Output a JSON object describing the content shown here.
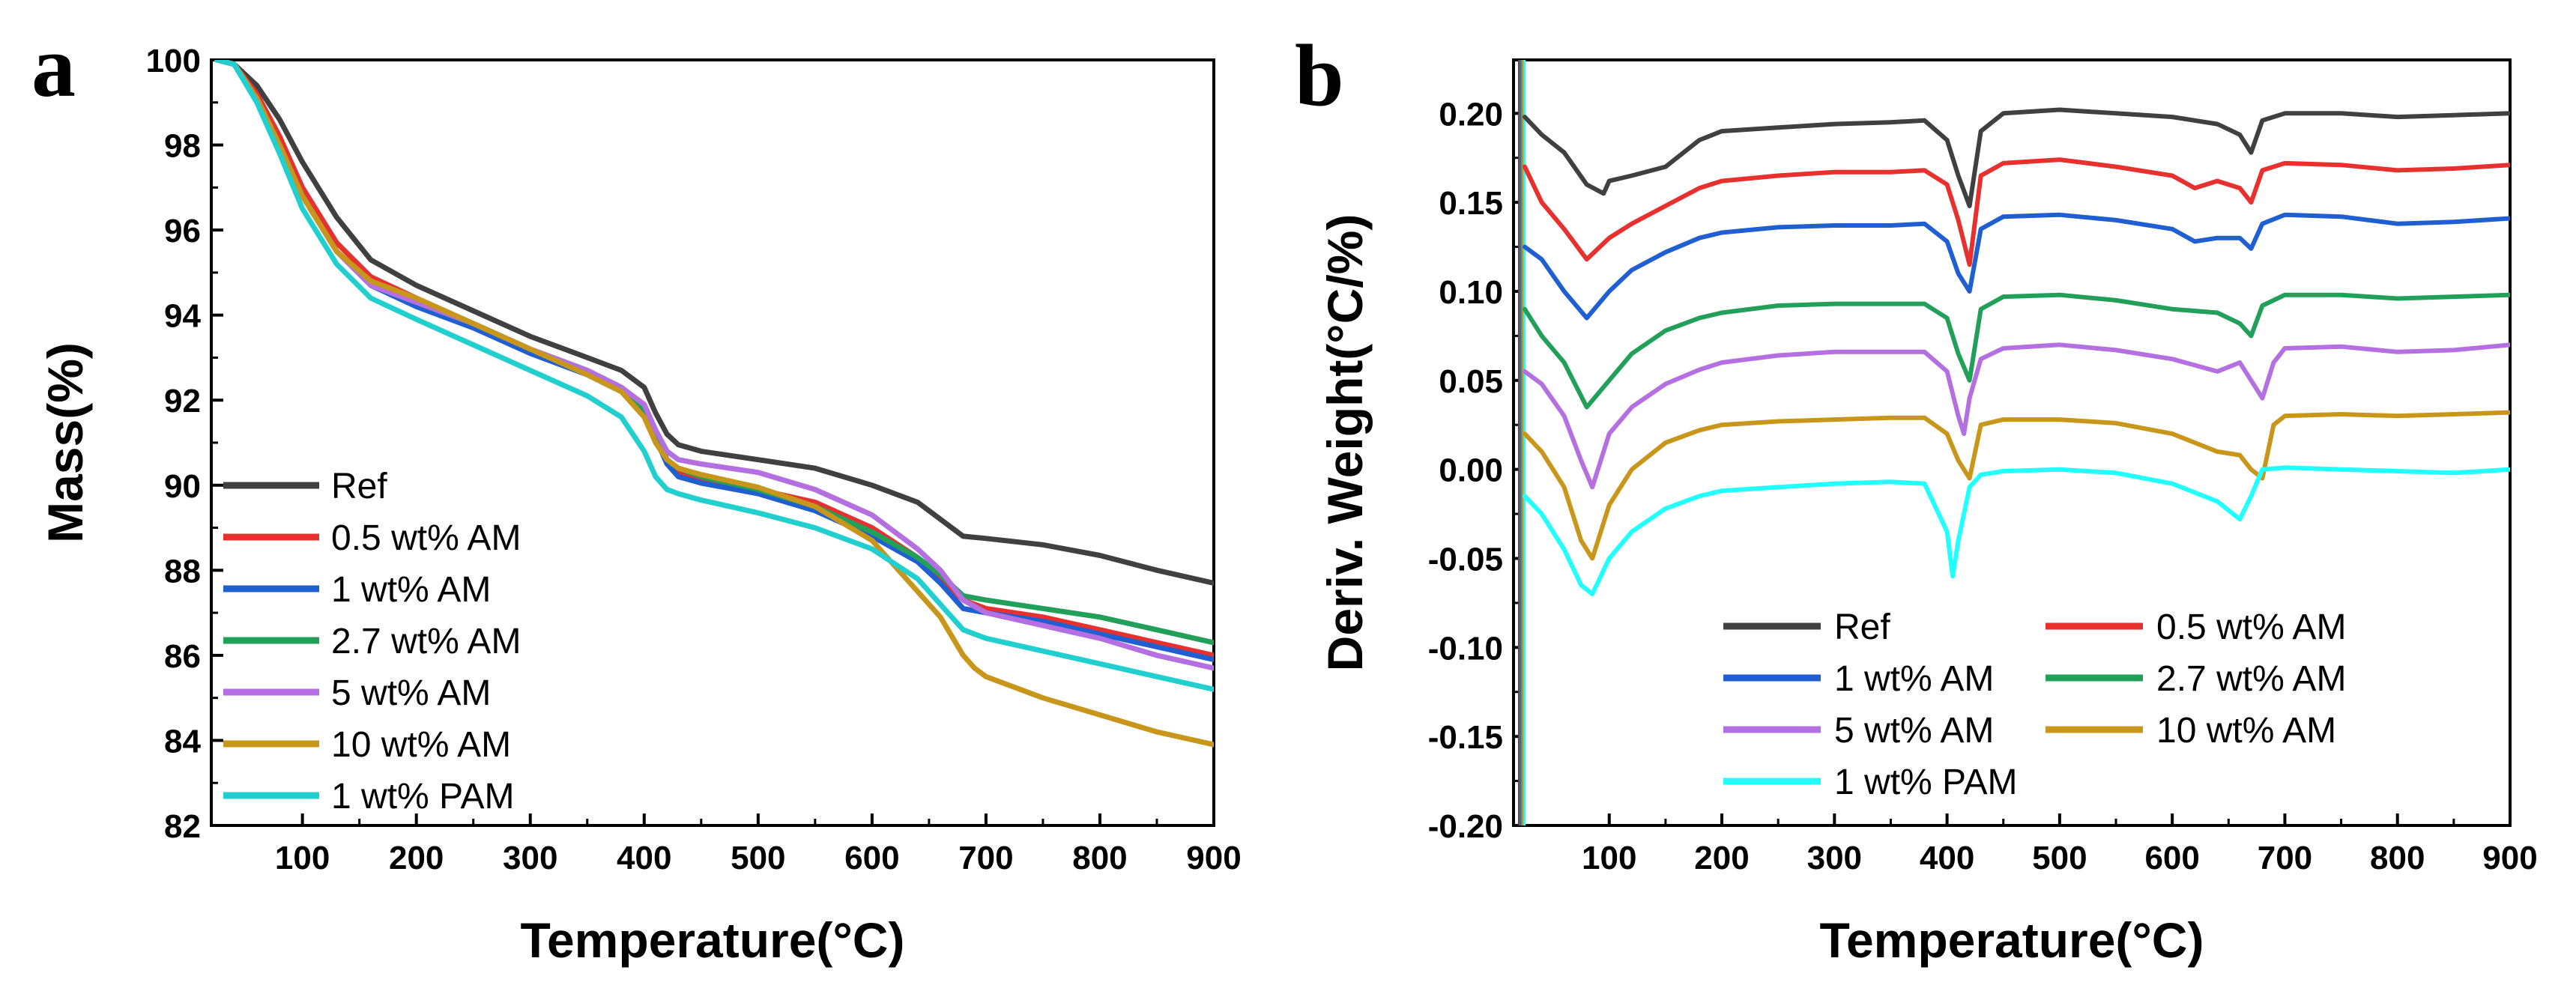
{
  "chart_data": [
    {
      "panel": "a",
      "type": "line",
      "xlabel": "Temperature(°C)",
      "ylabel": "Mass(%)",
      "xlim": [
        20,
        900
      ],
      "ylim": [
        82,
        100
      ],
      "xticks": [
        100,
        200,
        300,
        400,
        500,
        600,
        700,
        800,
        900
      ],
      "yticks": [
        82,
        84,
        86,
        88,
        90,
        92,
        94,
        96,
        98,
        100
      ],
      "legend_position": "bottom-left",
      "series": [
        {
          "name": "Ref",
          "color": "#404040",
          "x": [
            25,
            40,
            60,
            80,
            100,
            130,
            160,
            200,
            250,
            300,
            350,
            380,
            400,
            410,
            420,
            430,
            450,
            500,
            550,
            600,
            640,
            660,
            680,
            700,
            750,
            800,
            850,
            900
          ],
          "y": [
            100,
            99.9,
            99.4,
            98.6,
            97.6,
            96.3,
            95.3,
            94.7,
            94.1,
            93.5,
            93.0,
            92.7,
            92.3,
            91.7,
            91.2,
            90.95,
            90.8,
            90.6,
            90.4,
            90.0,
            89.6,
            89.2,
            88.8,
            88.75,
            88.6,
            88.35,
            88.0,
            87.7
          ]
        },
        {
          "name": "0.5 wt% AM",
          "color": "#e6312e",
          "x": [
            25,
            40,
            60,
            80,
            100,
            130,
            160,
            200,
            250,
            300,
            350,
            380,
            400,
            410,
            420,
            430,
            450,
            500,
            550,
            600,
            640,
            660,
            680,
            700,
            750,
            800,
            850,
            900
          ],
          "y": [
            100,
            99.9,
            99.2,
            98.2,
            97.0,
            95.7,
            94.9,
            94.4,
            93.8,
            93.2,
            92.7,
            92.3,
            91.8,
            91.2,
            90.6,
            90.3,
            90.15,
            89.9,
            89.6,
            89.0,
            88.3,
            87.8,
            87.3,
            87.1,
            86.9,
            86.6,
            86.3,
            86.0
          ]
        },
        {
          "name": "1 wt% AM",
          "color": "#1f5fd0",
          "x": [
            25,
            40,
            60,
            80,
            100,
            130,
            160,
            200,
            250,
            300,
            350,
            380,
            400,
            410,
            420,
            430,
            450,
            500,
            550,
            600,
            640,
            660,
            680,
            700,
            750,
            800,
            850,
            900
          ],
          "y": [
            100,
            99.9,
            99.1,
            98.0,
            96.8,
            95.5,
            94.7,
            94.2,
            93.7,
            93.1,
            92.6,
            92.2,
            91.7,
            91.1,
            90.5,
            90.2,
            90.05,
            89.8,
            89.4,
            88.8,
            88.2,
            87.7,
            87.1,
            87.0,
            86.8,
            86.5,
            86.2,
            85.9
          ]
        },
        {
          "name": "2.7 wt% AM",
          "color": "#22a05a",
          "x": [
            25,
            40,
            60,
            80,
            100,
            130,
            160,
            200,
            250,
            300,
            350,
            380,
            400,
            410,
            420,
            430,
            450,
            500,
            550,
            600,
            640,
            660,
            680,
            700,
            750,
            800,
            850,
            900
          ],
          "y": [
            100,
            99.9,
            99.1,
            98.0,
            96.8,
            95.5,
            94.7,
            94.3,
            93.8,
            93.2,
            92.7,
            92.3,
            91.8,
            91.2,
            90.6,
            90.4,
            90.2,
            89.9,
            89.5,
            88.9,
            88.3,
            87.9,
            87.4,
            87.3,
            87.1,
            86.9,
            86.6,
            86.3
          ]
        },
        {
          "name": "5 wt% AM",
          "color": "#b46fe0",
          "x": [
            25,
            40,
            60,
            80,
            100,
            130,
            160,
            200,
            250,
            300,
            350,
            380,
            400,
            410,
            420,
            430,
            450,
            500,
            550,
            600,
            640,
            660,
            680,
            700,
            750,
            800,
            850,
            900
          ],
          "y": [
            100,
            99.9,
            99.1,
            98.0,
            96.8,
            95.5,
            94.7,
            94.3,
            93.8,
            93.2,
            92.7,
            92.3,
            91.9,
            91.3,
            90.8,
            90.6,
            90.5,
            90.3,
            89.9,
            89.3,
            88.5,
            88.0,
            87.3,
            87.0,
            86.7,
            86.4,
            86.0,
            85.7
          ]
        },
        {
          "name": "10 wt% AM",
          "color": "#c8961a",
          "x": [
            25,
            40,
            60,
            80,
            100,
            130,
            160,
            200,
            250,
            300,
            350,
            380,
            400,
            410,
            420,
            430,
            450,
            500,
            550,
            600,
            640,
            660,
            680,
            690,
            700,
            750,
            800,
            850,
            900
          ],
          "y": [
            100,
            99.9,
            99.1,
            98.0,
            96.8,
            95.5,
            94.8,
            94.4,
            93.8,
            93.2,
            92.6,
            92.2,
            91.6,
            91.0,
            90.6,
            90.4,
            90.25,
            89.95,
            89.5,
            88.7,
            87.5,
            86.9,
            86.0,
            85.7,
            85.5,
            85.0,
            84.6,
            84.2,
            83.9
          ]
        },
        {
          "name": "1 wt% PAM",
          "color": "#22cfcf",
          "x": [
            25,
            40,
            60,
            80,
            100,
            130,
            160,
            200,
            250,
            300,
            350,
            380,
            400,
            410,
            420,
            430,
            450,
            500,
            550,
            600,
            640,
            660,
            680,
            700,
            750,
            800,
            850,
            900
          ],
          "y": [
            100,
            99.9,
            99.0,
            97.8,
            96.5,
            95.2,
            94.4,
            93.9,
            93.3,
            92.7,
            92.1,
            91.6,
            90.8,
            90.2,
            89.9,
            89.8,
            89.65,
            89.35,
            89.0,
            88.5,
            87.8,
            87.2,
            86.6,
            86.4,
            86.1,
            85.8,
            85.5,
            85.2
          ]
        }
      ]
    },
    {
      "panel": "b",
      "type": "line",
      "xlabel": "Temperature(°C)",
      "ylabel": "Deriv. Weight(°C/%)",
      "xlim": [
        15,
        900
      ],
      "ylim": [
        -0.2,
        0.23
      ],
      "xticks": [
        100,
        200,
        300,
        400,
        500,
        600,
        700,
        800,
        900
      ],
      "yticks": [
        "0.20",
        "0.15",
        "0.10",
        "0.05",
        "0.00",
        "-0.05",
        "-0.10",
        "-0.15",
        "-0.20"
      ],
      "legend_position": "bottom-center",
      "series": [
        {
          "name": "Ref",
          "color": "#404040",
          "baseline": 0.2,
          "x": [
            25,
            40,
            60,
            80,
            95,
            100,
            120,
            150,
            180,
            200,
            250,
            300,
            350,
            380,
            400,
            410,
            420,
            430,
            450,
            500,
            550,
            600,
            640,
            660,
            670,
            680,
            700,
            750,
            800,
            850,
            900
          ],
          "y": [
            0.198,
            0.188,
            0.178,
            0.16,
            0.155,
            0.162,
            0.165,
            0.17,
            0.185,
            0.19,
            0.192,
            0.194,
            0.195,
            0.196,
            0.185,
            0.165,
            0.148,
            0.19,
            0.2,
            0.202,
            0.2,
            0.198,
            0.194,
            0.188,
            0.178,
            0.196,
            0.2,
            0.2,
            0.198,
            0.199,
            0.2
          ]
        },
        {
          "name": "0.5 wt% AM",
          "color": "#e6312e",
          "baseline": 0.17,
          "x": [
            25,
            40,
            60,
            80,
            100,
            120,
            150,
            180,
            200,
            250,
            300,
            350,
            380,
            400,
            410,
            420,
            430,
            450,
            500,
            550,
            600,
            620,
            640,
            660,
            670,
            680,
            700,
            750,
            800,
            850,
            900
          ],
          "y": [
            0.17,
            0.15,
            0.135,
            0.118,
            0.13,
            0.138,
            0.148,
            0.158,
            0.162,
            0.165,
            0.167,
            0.167,
            0.168,
            0.16,
            0.14,
            0.115,
            0.165,
            0.172,
            0.174,
            0.17,
            0.165,
            0.158,
            0.162,
            0.158,
            0.15,
            0.168,
            0.172,
            0.171,
            0.168,
            0.169,
            0.171
          ]
        },
        {
          "name": "1 wt% AM",
          "color": "#1f5fd0",
          "baseline": 0.14,
          "x": [
            25,
            40,
            60,
            80,
            100,
            120,
            150,
            180,
            200,
            250,
            300,
            350,
            380,
            400,
            410,
            420,
            430,
            450,
            500,
            550,
            600,
            620,
            640,
            660,
            670,
            680,
            700,
            750,
            800,
            850,
            900
          ],
          "y": [
            0.125,
            0.118,
            0.1,
            0.085,
            0.1,
            0.112,
            0.122,
            0.13,
            0.133,
            0.136,
            0.137,
            0.137,
            0.138,
            0.128,
            0.11,
            0.1,
            0.135,
            0.142,
            0.143,
            0.14,
            0.135,
            0.128,
            0.13,
            0.13,
            0.124,
            0.138,
            0.143,
            0.142,
            0.138,
            0.139,
            0.141
          ]
        },
        {
          "name": "2.7 wt% AM",
          "color": "#22a05a",
          "baseline": 0.095,
          "x": [
            25,
            40,
            60,
            80,
            100,
            120,
            150,
            180,
            200,
            250,
            300,
            350,
            380,
            400,
            410,
            420,
            430,
            450,
            500,
            550,
            600,
            640,
            660,
            670,
            680,
            700,
            750,
            800,
            850,
            900
          ],
          "y": [
            0.09,
            0.075,
            0.06,
            0.035,
            0.05,
            0.065,
            0.078,
            0.085,
            0.088,
            0.092,
            0.093,
            0.093,
            0.093,
            0.085,
            0.065,
            0.05,
            0.09,
            0.097,
            0.098,
            0.095,
            0.09,
            0.088,
            0.082,
            0.075,
            0.092,
            0.098,
            0.098,
            0.096,
            0.097,
            0.098
          ]
        },
        {
          "name": "5 wt% AM",
          "color": "#b46fe0",
          "baseline": 0.065,
          "x": [
            25,
            40,
            60,
            75,
            85,
            100,
            120,
            150,
            180,
            200,
            250,
            300,
            350,
            380,
            400,
            410,
            415,
            420,
            430,
            450,
            500,
            550,
            600,
            640,
            660,
            670,
            680,
            690,
            700,
            750,
            800,
            850,
            900
          ],
          "y": [
            0.055,
            0.048,
            0.03,
            0.005,
            -0.01,
            0.02,
            0.035,
            0.048,
            0.056,
            0.06,
            0.064,
            0.066,
            0.066,
            0.066,
            0.055,
            0.03,
            0.02,
            0.04,
            0.062,
            0.068,
            0.07,
            0.067,
            0.062,
            0.055,
            0.06,
            0.05,
            0.04,
            0.06,
            0.068,
            0.069,
            0.066,
            0.067,
            0.07
          ]
        },
        {
          "name": "10 wt% AM",
          "color": "#c8961a",
          "baseline": 0.03,
          "x": [
            25,
            40,
            60,
            75,
            85,
            100,
            120,
            150,
            180,
            200,
            250,
            300,
            350,
            380,
            400,
            410,
            420,
            430,
            450,
            500,
            550,
            600,
            640,
            660,
            670,
            680,
            690,
            700,
            750,
            800,
            850,
            900
          ],
          "y": [
            0.02,
            0.01,
            -0.01,
            -0.04,
            -0.05,
            -0.02,
            0.0,
            0.015,
            0.022,
            0.025,
            0.027,
            0.028,
            0.029,
            0.029,
            0.02,
            0.005,
            -0.005,
            0.025,
            0.028,
            0.028,
            0.026,
            0.02,
            0.01,
            0.008,
            0.0,
            -0.005,
            0.025,
            0.03,
            0.031,
            0.03,
            0.031,
            0.032
          ]
        },
        {
          "name": "1 wt% PAM",
          "color": "#22ffff",
          "baseline": 0.0,
          "x": [
            25,
            40,
            60,
            75,
            85,
            100,
            120,
            150,
            180,
            200,
            250,
            300,
            350,
            380,
            400,
            405,
            410,
            420,
            430,
            450,
            500,
            550,
            600,
            640,
            660,
            670,
            680,
            700,
            750,
            800,
            850,
            900
          ],
          "y": [
            -0.015,
            -0.025,
            -0.045,
            -0.065,
            -0.07,
            -0.05,
            -0.035,
            -0.022,
            -0.015,
            -0.012,
            -0.01,
            -0.008,
            -0.007,
            -0.008,
            -0.035,
            -0.06,
            -0.04,
            -0.01,
            -0.003,
            -0.001,
            0.0,
            -0.002,
            -0.008,
            -0.018,
            -0.028,
            -0.015,
            0.0,
            0.001,
            0.0,
            -0.001,
            -0.002,
            0.0
          ]
        }
      ]
    }
  ]
}
